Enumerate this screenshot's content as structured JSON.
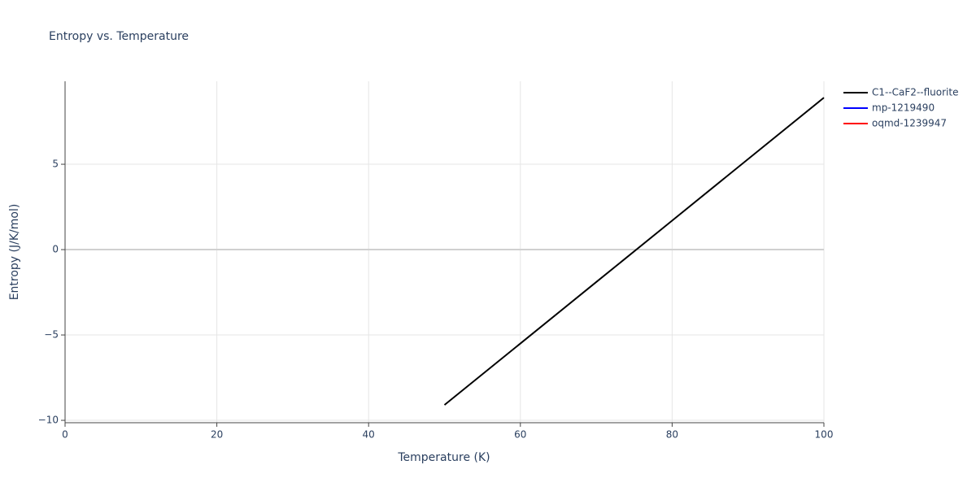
{
  "chart_data": {
    "type": "line",
    "title": "Entropy vs. Temperature",
    "x_label": "Temperature (K)",
    "y_label": "Entropy (J/K/mol)",
    "x": [
      50,
      60,
      70,
      80,
      90,
      100
    ],
    "series": [
      {
        "name": "C1--CaF2--fluorite",
        "color": "#000000",
        "values": [
          -9.1,
          -5.5,
          -1.9,
          1.7,
          5.3,
          8.9
        ]
      },
      {
        "name": "mp-1219490",
        "color": "#0000ff",
        "values": [
          null,
          null,
          null,
          null,
          null,
          null
        ]
      },
      {
        "name": "oqmd-1239947",
        "color": "#ff0000",
        "values": [
          null,
          null,
          null,
          null,
          null,
          null
        ]
      }
    ],
    "xlim": [
      0,
      100
    ],
    "xticks": [
      0,
      20,
      40,
      60,
      80,
      100
    ],
    "ylim": [
      -10.14,
      9.86
    ],
    "yticks": [
      {
        "value": -10,
        "label": "−10"
      },
      {
        "value": -5,
        "label": "−5"
      },
      0,
      5
    ],
    "grid": true,
    "legend": "right"
  }
}
